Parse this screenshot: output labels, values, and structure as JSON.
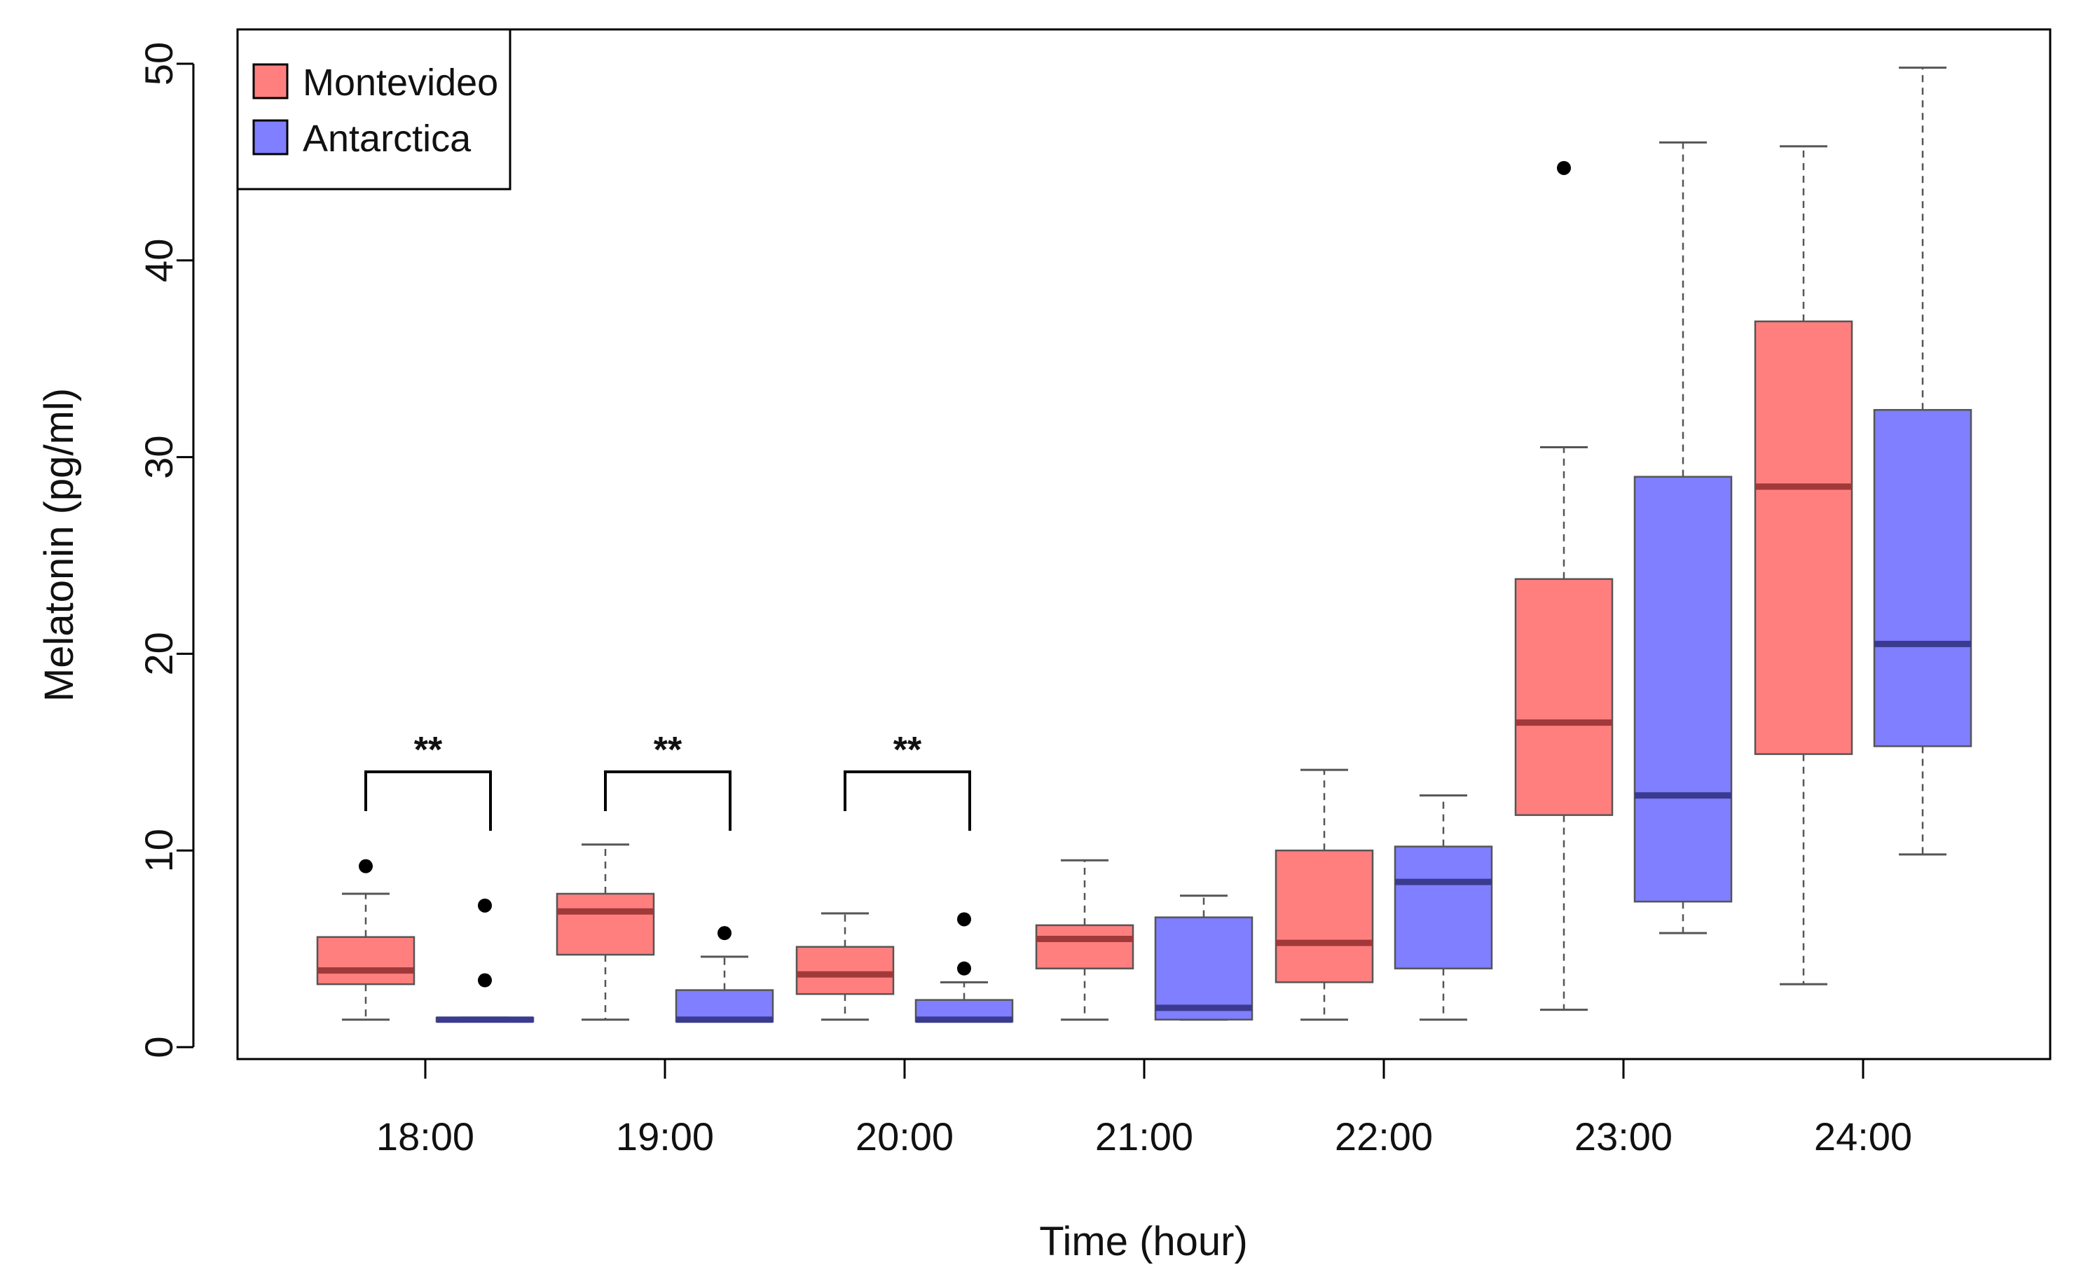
{
  "colors": {
    "Montevideo": "#FF7F7F",
    "Antarctica": "#7F7FFF",
    "Montevideo_median": "#A0393A",
    "Antarctica_median": "#3A3A8F",
    "axis": "#000000",
    "whisker": "#555555"
  },
  "chart_data": {
    "type": "boxplot",
    "title": "",
    "xlabel": "Time (hour)",
    "ylabel": "Melatonin (pg/ml)",
    "ylim": [
      0,
      50
    ],
    "yticks": [
      "0",
      "10",
      "20",
      "30",
      "40",
      "50"
    ],
    "categories": [
      "18:00",
      "19:00",
      "20:00",
      "21:00",
      "22:00",
      "23:00",
      "24:00"
    ],
    "legend": {
      "position": "top-left",
      "entries": [
        "Montevideo",
        "Antarctica"
      ]
    },
    "significance": [
      {
        "category": "18:00",
        "label": "**",
        "top": 14,
        "left_bottom": 12,
        "right_bottom": 11
      },
      {
        "category": "19:00",
        "label": "**",
        "top": 14,
        "left_bottom": 12,
        "right_bottom": 11
      },
      {
        "category": "20:00",
        "label": "**",
        "top": 14,
        "left_bottom": 12,
        "right_bottom": 11
      }
    ],
    "series": [
      {
        "name": "Montevideo",
        "boxes": [
          {
            "category": "18:00",
            "whisker_low": 1.4,
            "q1": 3.2,
            "median": 3.9,
            "q3": 5.6,
            "whisker_high": 7.8,
            "outliers": [
              9.2
            ]
          },
          {
            "category": "19:00",
            "whisker_low": 1.4,
            "q1": 4.7,
            "median": 6.9,
            "q3": 7.8,
            "whisker_high": 10.3,
            "outliers": []
          },
          {
            "category": "20:00",
            "whisker_low": 1.4,
            "q1": 2.7,
            "median": 3.7,
            "q3": 5.1,
            "whisker_high": 6.8,
            "outliers": []
          },
          {
            "category": "21:00",
            "whisker_low": 1.4,
            "q1": 4.0,
            "median": 5.5,
            "q3": 6.2,
            "whisker_high": 9.5,
            "outliers": []
          },
          {
            "category": "22:00",
            "whisker_low": 1.4,
            "q1": 3.3,
            "median": 5.3,
            "q3": 10.0,
            "whisker_high": 14.1,
            "outliers": []
          },
          {
            "category": "23:00",
            "whisker_low": 1.9,
            "q1": 11.8,
            "median": 16.5,
            "q3": 23.8,
            "whisker_high": 30.5,
            "outliers": [
              44.7
            ]
          },
          {
            "category": "24:00",
            "whisker_low": 3.2,
            "q1": 14.9,
            "median": 28.5,
            "q3": 36.9,
            "whisker_high": 45.8,
            "outliers": []
          }
        ]
      },
      {
        "name": "Antarctica",
        "boxes": [
          {
            "category": "18:00",
            "whisker_low": 1.3,
            "q1": 1.3,
            "median": 1.4,
            "q3": 1.5,
            "whisker_high": 1.5,
            "outliers": [
              3.4,
              7.2
            ]
          },
          {
            "category": "19:00",
            "whisker_low": 1.3,
            "q1": 1.3,
            "median": 1.4,
            "q3": 2.9,
            "whisker_high": 4.6,
            "outliers": [
              5.8
            ]
          },
          {
            "category": "20:00",
            "whisker_low": 1.3,
            "q1": 1.3,
            "median": 1.4,
            "q3": 2.4,
            "whisker_high": 3.3,
            "outliers": [
              4.0,
              6.5
            ]
          },
          {
            "category": "21:00",
            "whisker_low": 1.4,
            "q1": 1.4,
            "median": 2.0,
            "q3": 6.6,
            "whisker_high": 7.7,
            "outliers": []
          },
          {
            "category": "22:00",
            "whisker_low": 1.4,
            "q1": 4.0,
            "median": 8.4,
            "q3": 10.2,
            "whisker_high": 12.8,
            "outliers": []
          },
          {
            "category": "23:00",
            "whisker_low": 5.8,
            "q1": 7.4,
            "median": 12.8,
            "q3": 29.0,
            "whisker_high": 46.0,
            "outliers": []
          },
          {
            "category": "24:00",
            "whisker_low": 9.8,
            "q1": 15.3,
            "median": 20.5,
            "q3": 32.4,
            "whisker_high": 49.8,
            "outliers": []
          }
        ]
      }
    ]
  }
}
